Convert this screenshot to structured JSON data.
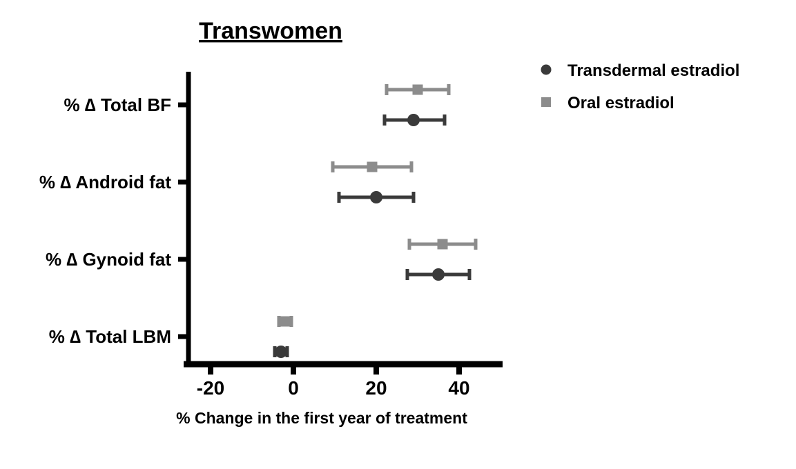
{
  "chart_data": {
    "type": "scatter",
    "subtype": "forest-plot-point-range",
    "title": "Transwomen",
    "xlabel": "% Change in the first year of treatment",
    "categories": [
      "% ∆ Total BF",
      "% ∆ Android fat",
      "% ∆ Gynoid fat",
      "% ∆ Total LBM"
    ],
    "x_ticks": [
      "-20",
      "0",
      "20",
      "40"
    ],
    "xlim": [
      -25.5,
      50.5
    ],
    "grid": false,
    "legend_position": "top-right",
    "axis_color": "#000000",
    "series": [
      {
        "name": "Transdermal estradiol",
        "marker": "circle",
        "color": "#3a3a3a",
        "values": [
          29,
          20,
          35,
          -3
        ],
        "ci_low": [
          22,
          11,
          27.5,
          -4.5
        ],
        "ci_high": [
          36.5,
          29,
          42.5,
          -1.5
        ]
      },
      {
        "name": "Oral estradiol",
        "marker": "square",
        "color": "#8c8c8c",
        "values": [
          30,
          19,
          36,
          -2
        ],
        "ci_low": [
          22.5,
          9.5,
          28,
          -3.5
        ],
        "ci_high": [
          37.5,
          28.5,
          44,
          -0.5
        ]
      }
    ]
  }
}
